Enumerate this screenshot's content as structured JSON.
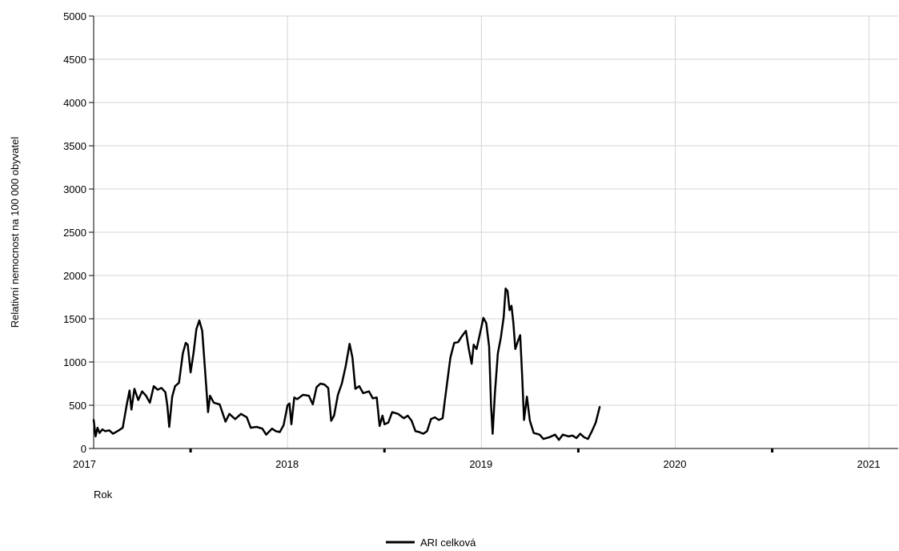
{
  "chart_data": {
    "type": "line",
    "xlabel": "Rok",
    "ylabel": "Relativní nemocnost na 100 000 obyvatel",
    "xlim": [
      2017,
      2021.15
    ],
    "ylim": [
      0,
      5000
    ],
    "x_ticks": [
      "2017",
      "2018",
      "2019",
      "2020",
      "2021"
    ],
    "y_ticks": [
      "0",
      "500",
      "1000",
      "1500",
      "2000",
      "2500",
      "3000",
      "3500",
      "4000",
      "4500",
      "5000"
    ],
    "grid": true,
    "legend_position": "bottom-center",
    "series": [
      {
        "name": "ARI celková",
        "color": "#000000",
        "points": [
          [
            2017.0,
            330
          ],
          [
            2017.01,
            140
          ],
          [
            2017.02,
            240
          ],
          [
            2017.03,
            180
          ],
          [
            2017.045,
            220
          ],
          [
            2017.06,
            200
          ],
          [
            2017.08,
            210
          ],
          [
            2017.1,
            170
          ],
          [
            2017.13,
            210
          ],
          [
            2017.15,
            240
          ],
          [
            2017.17,
            500
          ],
          [
            2017.185,
            670
          ],
          [
            2017.195,
            450
          ],
          [
            2017.21,
            690
          ],
          [
            2017.23,
            560
          ],
          [
            2017.25,
            660
          ],
          [
            2017.27,
            610
          ],
          [
            2017.29,
            530
          ],
          [
            2017.31,
            720
          ],
          [
            2017.33,
            680
          ],
          [
            2017.35,
            700
          ],
          [
            2017.37,
            650
          ],
          [
            2017.38,
            500
          ],
          [
            2017.39,
            250
          ],
          [
            2017.405,
            600
          ],
          [
            2017.42,
            720
          ],
          [
            2017.44,
            760
          ],
          [
            2017.46,
            1100
          ],
          [
            2017.475,
            1220
          ],
          [
            2017.485,
            1200
          ],
          [
            2017.5,
            880
          ],
          [
            2017.515,
            1100
          ],
          [
            2017.53,
            1380
          ],
          [
            2017.545,
            1480
          ],
          [
            2017.56,
            1360
          ],
          [
            2017.575,
            900
          ],
          [
            2017.59,
            420
          ],
          [
            2017.6,
            610
          ],
          [
            2017.62,
            530
          ],
          [
            2017.65,
            510
          ],
          [
            2017.68,
            310
          ],
          [
            2017.7,
            400
          ],
          [
            2017.73,
            340
          ],
          [
            2017.76,
            400
          ],
          [
            2017.79,
            360
          ],
          [
            2017.81,
            240
          ],
          [
            2017.84,
            250
          ],
          [
            2017.87,
            230
          ],
          [
            2017.89,
            160
          ],
          [
            2017.92,
            230
          ],
          [
            2017.94,
            200
          ],
          [
            2017.96,
            190
          ],
          [
            2017.98,
            270
          ],
          [
            2018.0,
            500
          ],
          [
            2018.01,
            520
          ],
          [
            2018.02,
            280
          ],
          [
            2018.035,
            590
          ],
          [
            2018.05,
            570
          ],
          [
            2018.08,
            620
          ],
          [
            2018.11,
            610
          ],
          [
            2018.13,
            510
          ],
          [
            2018.15,
            710
          ],
          [
            2018.17,
            750
          ],
          [
            2018.19,
            740
          ],
          [
            2018.21,
            700
          ],
          [
            2018.225,
            320
          ],
          [
            2018.24,
            380
          ],
          [
            2018.26,
            620
          ],
          [
            2018.28,
            750
          ],
          [
            2018.3,
            950
          ],
          [
            2018.32,
            1210
          ],
          [
            2018.335,
            1050
          ],
          [
            2018.35,
            690
          ],
          [
            2018.37,
            720
          ],
          [
            2018.39,
            640
          ],
          [
            2018.42,
            660
          ],
          [
            2018.44,
            580
          ],
          [
            2018.46,
            590
          ],
          [
            2018.475,
            260
          ],
          [
            2018.49,
            380
          ],
          [
            2018.5,
            280
          ],
          [
            2018.52,
            300
          ],
          [
            2018.54,
            420
          ],
          [
            2018.57,
            400
          ],
          [
            2018.6,
            350
          ],
          [
            2018.62,
            380
          ],
          [
            2018.64,
            320
          ],
          [
            2018.66,
            200
          ],
          [
            2018.68,
            190
          ],
          [
            2018.7,
            170
          ],
          [
            2018.72,
            200
          ],
          [
            2018.74,
            340
          ],
          [
            2018.76,
            360
          ],
          [
            2018.78,
            330
          ],
          [
            2018.8,
            350
          ],
          [
            2018.82,
            700
          ],
          [
            2018.84,
            1050
          ],
          [
            2018.86,
            1220
          ],
          [
            2018.88,
            1230
          ],
          [
            2018.9,
            1300
          ],
          [
            2018.92,
            1360
          ],
          [
            2018.935,
            1150
          ],
          [
            2018.95,
            980
          ],
          [
            2018.96,
            1200
          ],
          [
            2018.975,
            1150
          ],
          [
            2018.99,
            1300
          ],
          [
            2019.01,
            1510
          ],
          [
            2019.025,
            1450
          ],
          [
            2019.04,
            1180
          ],
          [
            2019.05,
            500
          ],
          [
            2019.058,
            170
          ],
          [
            2019.07,
            650
          ],
          [
            2019.085,
            1100
          ],
          [
            2019.1,
            1280
          ],
          [
            2019.115,
            1520
          ],
          [
            2019.125,
            1850
          ],
          [
            2019.135,
            1820
          ],
          [
            2019.145,
            1600
          ],
          [
            2019.155,
            1650
          ],
          [
            2019.165,
            1450
          ],
          [
            2019.175,
            1150
          ],
          [
            2019.19,
            1250
          ],
          [
            2019.2,
            1310
          ],
          [
            2019.21,
            850
          ],
          [
            2019.22,
            330
          ],
          [
            2019.235,
            600
          ],
          [
            2019.25,
            320
          ],
          [
            2019.27,
            180
          ],
          [
            2019.3,
            160
          ],
          [
            2019.32,
            110
          ],
          [
            2019.35,
            130
          ],
          [
            2019.38,
            160
          ],
          [
            2019.4,
            100
          ],
          [
            2019.42,
            160
          ],
          [
            2019.45,
            140
          ],
          [
            2019.47,
            150
          ],
          [
            2019.49,
            120
          ],
          [
            2019.51,
            170
          ],
          [
            2019.53,
            130
          ],
          [
            2019.55,
            110
          ],
          [
            2019.57,
            200
          ],
          [
            2019.59,
            300
          ],
          [
            2019.61,
            480
          ]
        ]
      }
    ]
  }
}
